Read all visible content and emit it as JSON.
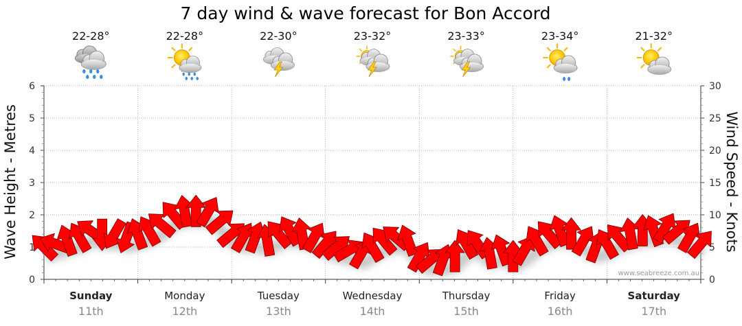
{
  "title": "7 day wind & wave forecast for Bon Accord",
  "credit": "www.seabreeze.com.au",
  "colors": {
    "wind_arrow": "#ff0000",
    "arrow_outline": "#7a0000",
    "shadow": "#bbbbbb",
    "grid": "#999999"
  },
  "days": [
    {
      "name": "Sunday",
      "date": "11th",
      "temp": "22-28°",
      "icon": "rain-cloud-icon",
      "bold": true
    },
    {
      "name": "Monday",
      "date": "12th",
      "temp": "22-28°",
      "icon": "sun-cloud-rain-icon",
      "bold": false
    },
    {
      "name": "Tuesday",
      "date": "13th",
      "temp": "22-30°",
      "icon": "thunderstorm-cloud-icon",
      "bold": false
    },
    {
      "name": "Wednesday",
      "date": "14th",
      "temp": "23-32°",
      "icon": "sun-thunderstorm-cloud-icon",
      "bold": false
    },
    {
      "name": "Thursday",
      "date": "15th",
      "temp": "23-33°",
      "icon": "sun-thunderstorm-cloud-icon",
      "bold": false
    },
    {
      "name": "Friday",
      "date": "16th",
      "temp": "23-34°",
      "icon": "sun-cloud-shower-icon",
      "bold": false
    },
    {
      "name": "Saturday",
      "date": "17th",
      "temp": "21-32°",
      "icon": "sun-cloud-icon",
      "bold": true
    }
  ],
  "chart_data": {
    "type": "line",
    "title": "7 day wind & wave forecast for Bon Accord",
    "left_axis": {
      "label": "Wave Height - Metres",
      "range": [
        0,
        6
      ],
      "ticks": [
        0,
        1,
        2,
        3,
        4,
        5,
        6
      ]
    },
    "right_axis": {
      "label": "Wind Speed - Knots",
      "range": [
        0,
        30
      ],
      "ticks": [
        0,
        5,
        10,
        15,
        20,
        25,
        30
      ]
    },
    "x_unit": "day_fraction_from_start_of_Sunday_11th",
    "x_range": [
      0,
      7
    ],
    "grid": true,
    "wind_speed_knots": [
      {
        "x": 0.0,
        "y": 5.0
      },
      {
        "x": 0.12,
        "y": 5.5
      },
      {
        "x": 0.25,
        "y": 6.0
      },
      {
        "x": 0.38,
        "y": 6.5
      },
      {
        "x": 0.5,
        "y": 7.5
      },
      {
        "x": 0.62,
        "y": 7.0
      },
      {
        "x": 0.75,
        "y": 7.0
      },
      {
        "x": 0.88,
        "y": 6.5
      },
      {
        "x": 1.0,
        "y": 7.0
      },
      {
        "x": 1.12,
        "y": 7.5
      },
      {
        "x": 1.25,
        "y": 8.5
      },
      {
        "x": 1.38,
        "y": 10.0
      },
      {
        "x": 1.5,
        "y": 10.5
      },
      {
        "x": 1.62,
        "y": 10.5
      },
      {
        "x": 1.75,
        "y": 10.5
      },
      {
        "x": 1.88,
        "y": 9.0
      },
      {
        "x": 2.0,
        "y": 7.0
      },
      {
        "x": 2.12,
        "y": 6.5
      },
      {
        "x": 2.25,
        "y": 6.5
      },
      {
        "x": 2.38,
        "y": 6.0
      },
      {
        "x": 2.5,
        "y": 7.0
      },
      {
        "x": 2.62,
        "y": 7.5
      },
      {
        "x": 2.75,
        "y": 7.0
      },
      {
        "x": 2.88,
        "y": 6.5
      },
      {
        "x": 3.0,
        "y": 5.5
      },
      {
        "x": 3.12,
        "y": 5.0
      },
      {
        "x": 3.25,
        "y": 4.5
      },
      {
        "x": 3.38,
        "y": 4.0
      },
      {
        "x": 3.5,
        "y": 5.0
      },
      {
        "x": 3.62,
        "y": 6.0
      },
      {
        "x": 3.75,
        "y": 6.5
      },
      {
        "x": 3.88,
        "y": 6.0
      },
      {
        "x": 4.0,
        "y": 3.5
      },
      {
        "x": 4.12,
        "y": 3.0
      },
      {
        "x": 4.25,
        "y": 3.0
      },
      {
        "x": 4.38,
        "y": 3.5
      },
      {
        "x": 4.5,
        "y": 5.5
      },
      {
        "x": 4.62,
        "y": 5.5
      },
      {
        "x": 4.75,
        "y": 4.0
      },
      {
        "x": 4.88,
        "y": 4.5
      },
      {
        "x": 5.0,
        "y": 3.5
      },
      {
        "x": 5.12,
        "y": 4.5
      },
      {
        "x": 5.25,
        "y": 6.0
      },
      {
        "x": 5.38,
        "y": 7.0
      },
      {
        "x": 5.5,
        "y": 7.5
      },
      {
        "x": 5.62,
        "y": 7.0
      },
      {
        "x": 5.75,
        "y": 6.0
      },
      {
        "x": 5.88,
        "y": 5.0
      },
      {
        "x": 6.0,
        "y": 5.5
      },
      {
        "x": 6.12,
        "y": 6.5
      },
      {
        "x": 6.25,
        "y": 7.0
      },
      {
        "x": 6.38,
        "y": 7.5
      },
      {
        "x": 6.5,
        "y": 7.5
      },
      {
        "x": 6.62,
        "y": 8.0
      },
      {
        "x": 6.75,
        "y": 7.5
      },
      {
        "x": 6.88,
        "y": 6.5
      },
      {
        "x": 7.0,
        "y": 5.5
      }
    ],
    "wind_direction_deg": [
      225,
      200,
      250,
      240,
      215,
      90,
      120,
      110,
      250,
      240,
      220,
      230,
      260,
      270,
      300,
      320,
      320,
      300,
      290,
      260,
      230,
      240,
      260,
      300,
      310,
      320,
      330,
      300,
      240,
      230,
      220,
      250,
      300,
      320,
      290,
      270,
      240,
      235,
      260,
      250,
      270,
      300,
      240,
      230,
      250,
      270,
      300,
      290,
      240,
      230,
      260,
      270,
      250,
      300,
      320,
      300,
      310
    ]
  }
}
